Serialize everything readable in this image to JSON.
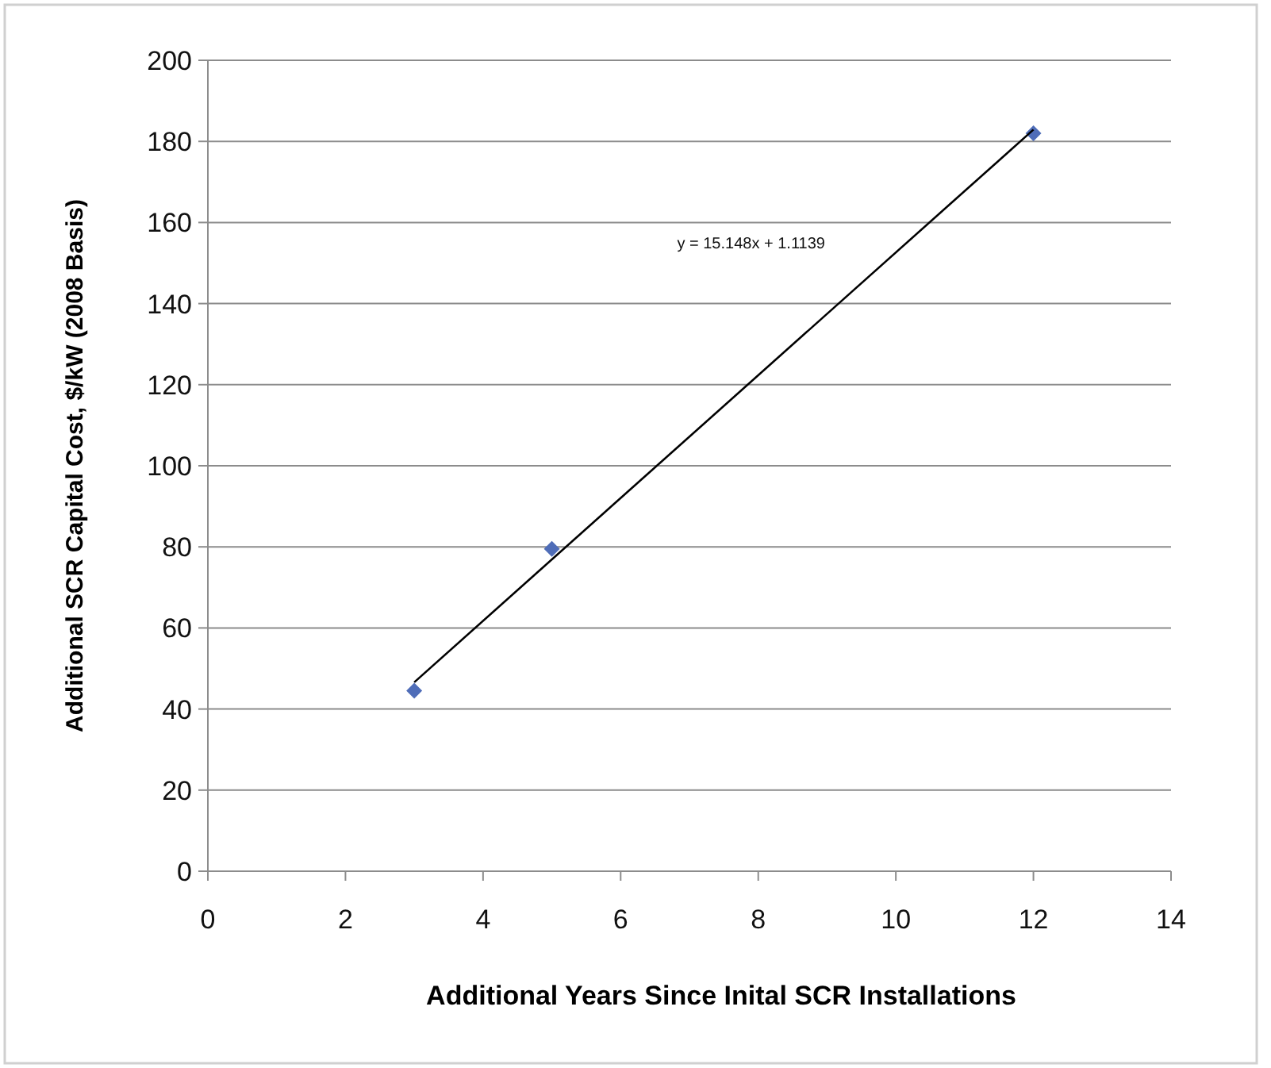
{
  "chart_data": {
    "type": "scatter",
    "xlabel": "Additional Years Since Inital SCR Installations",
    "ylabel": "Additional SCR Capital Cost, $/kW (2008 Basis)",
    "xlim": [
      0,
      14
    ],
    "xticks": [
      0,
      2,
      4,
      6,
      8,
      10,
      12,
      14
    ],
    "ylim": [
      0,
      200
    ],
    "yticks": [
      0,
      20,
      40,
      60,
      80,
      100,
      120,
      140,
      160,
      180,
      200
    ],
    "grid": "y",
    "series": [
      {
        "color": "#4f6db8",
        "marker": "diamond",
        "x": [
          3,
          5,
          12
        ],
        "values": [
          44.5,
          79.5,
          182
        ]
      },
      {
        "type": "line",
        "color": "#000000",
        "marker": "none",
        "line_style": "solid",
        "x": [
          3,
          12
        ],
        "values": [
          46.6,
          182.9
        ]
      }
    ],
    "annotations": [
      "y = 15.148x + 1.1139"
    ]
  }
}
